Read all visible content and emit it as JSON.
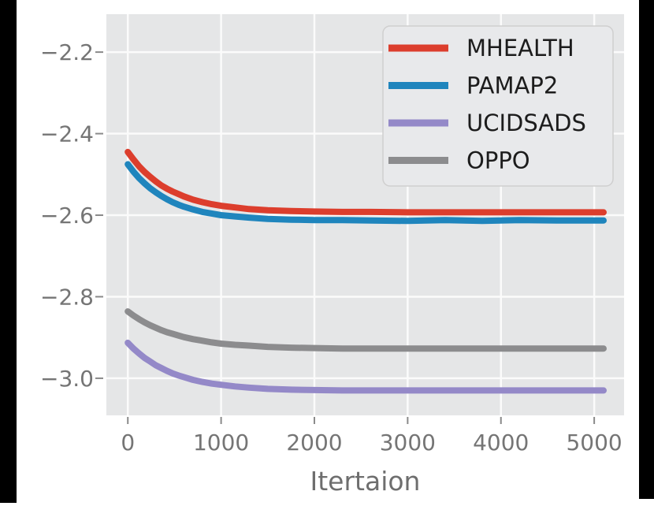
{
  "figure": {
    "plot_bg_color": "#e5e6e7",
    "grid_color": "#fbfbfb",
    "tick_mark_color": "#8a8a8a",
    "tick_label_color": "#757575",
    "axis_label_color": "#6e6e6e",
    "legend_bg_color": "#e8e9eb",
    "legend_border_color": "#cfcfcf",
    "legend_text_color": "#1c1c1c",
    "black_bar_color": "#000000"
  },
  "chart_data": {
    "type": "line",
    "title": "",
    "xlabel": "Itertaion",
    "ylabel": "",
    "xlim": [
      -230,
      5320
    ],
    "ylim": [
      -3.091,
      -2.107
    ],
    "grid": true,
    "legend_position": "upper right",
    "xticks": [
      0,
      1000,
      2000,
      3000,
      4000,
      5000
    ],
    "xtick_labels": [
      "0",
      "1000",
      "2000",
      "3000",
      "4000",
      "5000"
    ],
    "yticks": [
      -2.2,
      -2.4,
      -2.6,
      -2.8,
      -3.0
    ],
    "ytick_labels": [
      "−2.2",
      "−2.4",
      "−2.6",
      "−2.8",
      "−3.0"
    ],
    "x": [
      0,
      60,
      120,
      180,
      240,
      300,
      360,
      420,
      480,
      540,
      600,
      700,
      800,
      900,
      1000,
      1150,
      1300,
      1500,
      1750,
      2000,
      2300,
      2600,
      3000,
      3400,
      3800,
      4200,
      4600,
      5100
    ],
    "series": [
      {
        "name": "MHEALTH",
        "color": "#dc3e2d",
        "values": [
          -2.445,
          -2.463,
          -2.48,
          -2.494,
          -2.506,
          -2.517,
          -2.527,
          -2.535,
          -2.542,
          -2.548,
          -2.554,
          -2.562,
          -2.568,
          -2.573,
          -2.577,
          -2.581,
          -2.585,
          -2.588,
          -2.59,
          -2.591,
          -2.592,
          -2.592,
          -2.593,
          -2.593,
          -2.593,
          -2.593,
          -2.593,
          -2.593
        ]
      },
      {
        "name": "PAMAP2",
        "color": "#1f85bd",
        "values": [
          -2.475,
          -2.493,
          -2.509,
          -2.522,
          -2.534,
          -2.544,
          -2.553,
          -2.561,
          -2.568,
          -2.574,
          -2.579,
          -2.586,
          -2.592,
          -2.596,
          -2.6,
          -2.603,
          -2.606,
          -2.609,
          -2.611,
          -2.612,
          -2.612,
          -2.613,
          -2.614,
          -2.612,
          -2.614,
          -2.612,
          -2.613,
          -2.613
        ]
      },
      {
        "name": "UCIDSADS",
        "color": "#9489c8",
        "values": [
          -2.913,
          -2.927,
          -2.939,
          -2.95,
          -2.959,
          -2.968,
          -2.975,
          -2.982,
          -2.988,
          -2.993,
          -2.997,
          -3.004,
          -3.009,
          -3.013,
          -3.016,
          -3.02,
          -3.023,
          -3.026,
          -3.028,
          -3.029,
          -3.03,
          -3.03,
          -3.03,
          -3.03,
          -3.03,
          -3.03,
          -3.03,
          -3.03
        ]
      },
      {
        "name": "OPPO",
        "color": "#8c8c8e",
        "values": [
          -2.836,
          -2.846,
          -2.855,
          -2.863,
          -2.87,
          -2.876,
          -2.882,
          -2.887,
          -2.891,
          -2.895,
          -2.899,
          -2.904,
          -2.908,
          -2.912,
          -2.915,
          -2.918,
          -2.92,
          -2.923,
          -2.925,
          -2.926,
          -2.927,
          -2.927,
          -2.927,
          -2.927,
          -2.927,
          -2.927,
          -2.927,
          -2.927
        ]
      }
    ]
  }
}
